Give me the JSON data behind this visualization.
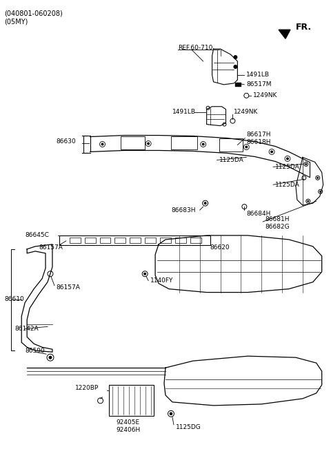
{
  "title_line1": "(040801-060208)",
  "title_line2": "(05MY)",
  "fr_label": "FR.",
  "bg_color": "#ffffff",
  "text_color": "#000000",
  "line_color": "#000000"
}
